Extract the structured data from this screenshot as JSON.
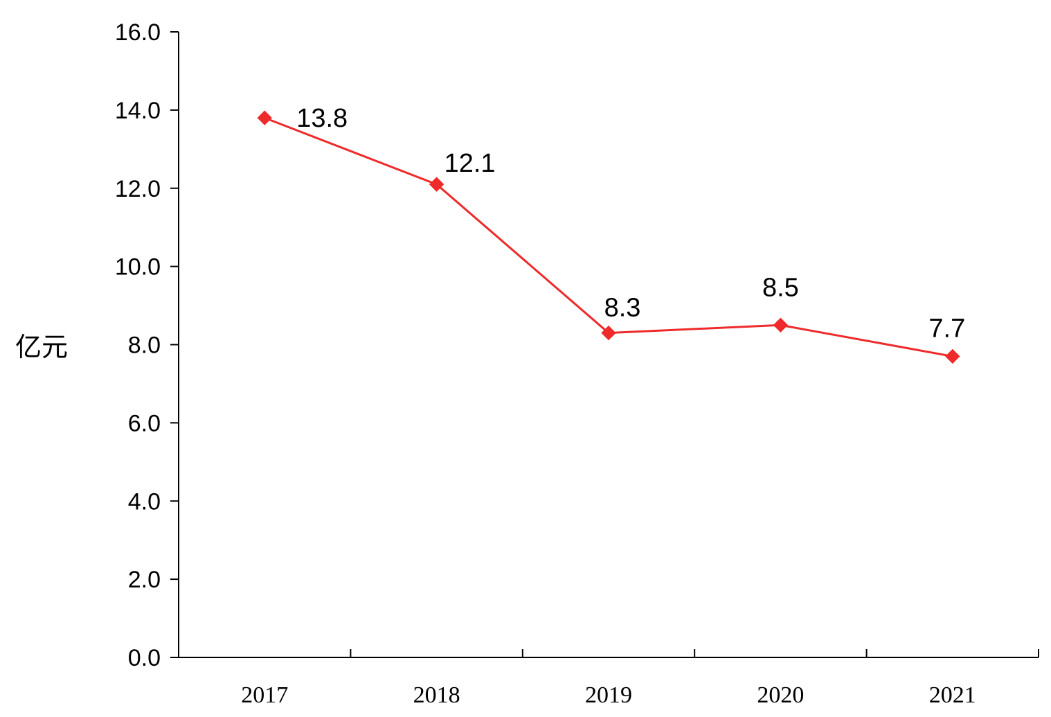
{
  "chart_data": {
    "type": "line",
    "categories": [
      "2017",
      "2018",
      "2019",
      "2020",
      "2021"
    ],
    "series": [
      {
        "values": [
          13.8,
          12.1,
          8.3,
          8.5,
          7.7
        ],
        "color": "#ee2a2a",
        "marker": "diamond"
      }
    ],
    "data_labels": [
      "13.8",
      "12.1",
      "8.3",
      "8.5",
      "7.7"
    ],
    "ylabel": "亿元",
    "xlabel": "",
    "title": "",
    "ylim": [
      0,
      16
    ],
    "y_ticks": [
      0,
      2,
      4,
      6,
      8,
      10,
      12,
      14,
      16
    ],
    "y_tick_labels": [
      "0.0",
      "2.0",
      "4.0",
      "6.0",
      "8.0",
      "10.0",
      "12.0",
      "14.0",
      "16.0"
    ],
    "grid": false,
    "legend": "none"
  }
}
